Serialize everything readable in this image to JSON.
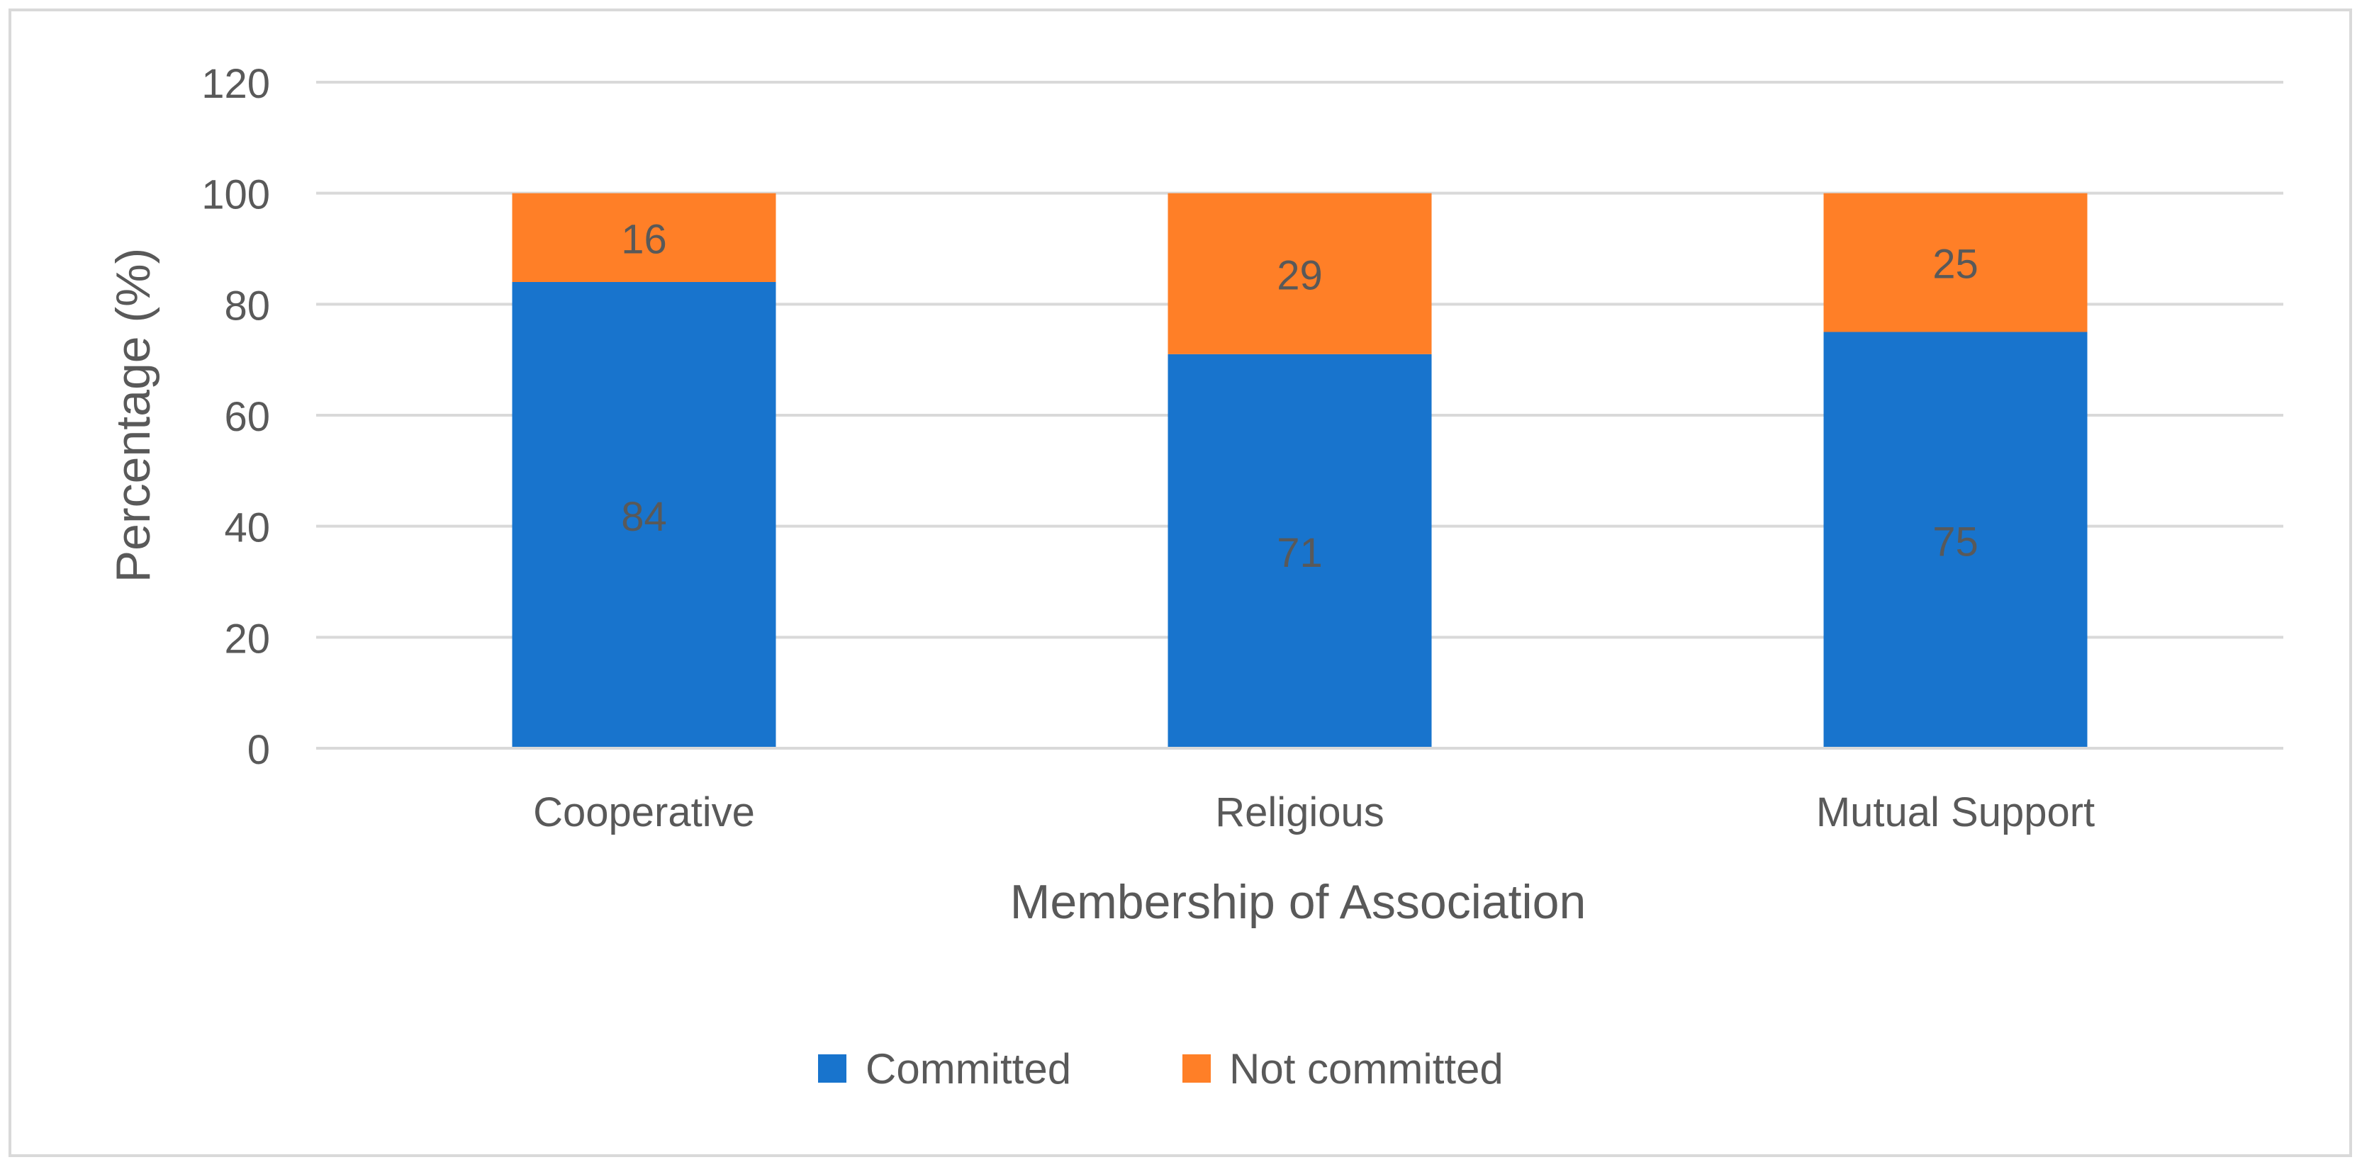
{
  "colors": {
    "committed": "#1874CD",
    "not_committed": "#FF7F27",
    "grid": "#d9d9d9",
    "text": "#595959"
  },
  "chart_data": {
    "type": "bar",
    "stacked": true,
    "title": "",
    "xlabel": "Membership of Association",
    "ylabel": "Percentage (%)",
    "ylim": [
      0,
      120
    ],
    "yticks": [
      0,
      20,
      40,
      60,
      80,
      100,
      120
    ],
    "grid": true,
    "legend_position": "bottom",
    "categories": [
      "Cooperative",
      "Religious",
      "Mutual Support"
    ],
    "series": [
      {
        "name": "Committed",
        "values": [
          84,
          71,
          75
        ],
        "color": "#1874CD"
      },
      {
        "name": "Not committed",
        "values": [
          16,
          29,
          25
        ],
        "color": "#FF7F27"
      }
    ]
  }
}
